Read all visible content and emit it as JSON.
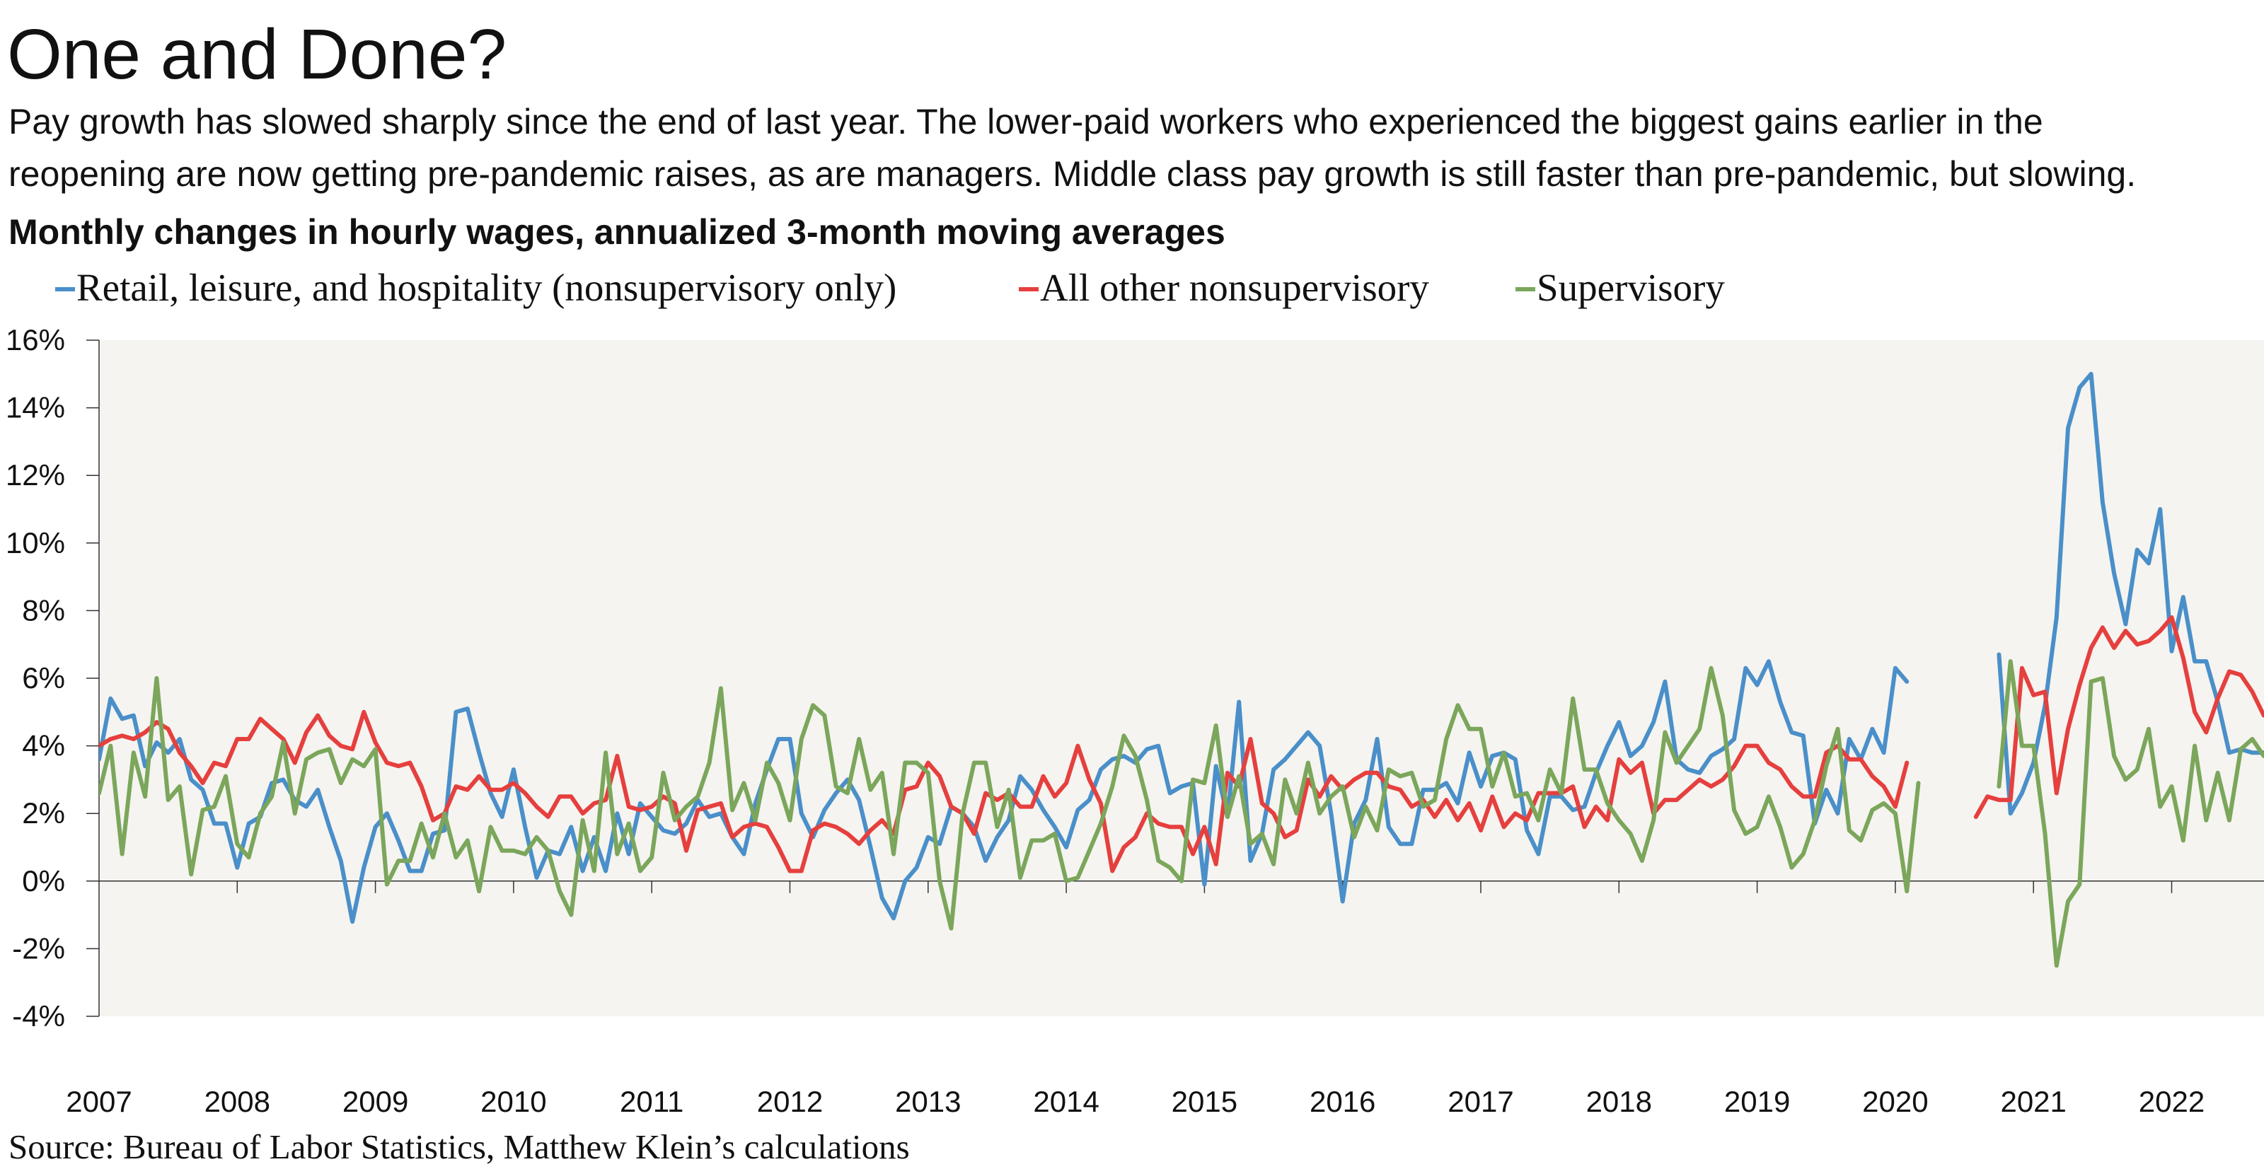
{
  "header": {
    "title": "One and Done?",
    "subtitle_line1": "Pay growth has slowed sharply since the end of last year. The lower-paid workers who experienced the biggest gains earlier in the",
    "subtitle_line2": "reopening are now getting pre-pandemic raises, as are managers. Middle class pay growth is still faster than pre-pandemic, but slowing."
  },
  "footer": {
    "source": "Source: Bureau of Labor Statistics, Matthew Klein’s calculations"
  },
  "chart_data": {
    "type": "line",
    "title": "Monthly changes in hourly wages, annualized 3-month moving averages",
    "xlabel": "",
    "ylabel": "",
    "x_start": "2007-01",
    "x_frequency": "monthly",
    "ylim": [
      -4,
      16
    ],
    "y_ticks": [
      {
        "v": 16,
        "label": "16%"
      },
      {
        "v": 14,
        "label": "14%"
      },
      {
        "v": 12,
        "label": "12%"
      },
      {
        "v": 10,
        "label": "10%"
      },
      {
        "v": 8,
        "label": "8%"
      },
      {
        "v": 6,
        "label": "6%"
      },
      {
        "v": 4,
        "label": "4%"
      },
      {
        "v": 2,
        "label": "2%"
      },
      {
        "v": 0,
        "label": "0%"
      },
      {
        "v": -2,
        "label": "-2%"
      },
      {
        "v": -4,
        "label": "-4%"
      }
    ],
    "x_ticks": [
      "2007",
      "2008",
      "2009",
      "2010",
      "2011",
      "2012",
      "2013",
      "2014",
      "2015",
      "2016",
      "2017",
      "2018",
      "2019",
      "2020",
      "2021",
      "2022"
    ],
    "legend_position": "top-left",
    "series": [
      {
        "name": "Retail, leisure, and hospitality (nonsupervisory only)",
        "color": "#4a8fc9",
        "values": [
          3.6,
          5.4,
          4.8,
          4.9,
          3.4,
          4.1,
          3.8,
          4.2,
          3.0,
          2.7,
          1.7,
          1.7,
          0.4,
          1.7,
          1.9,
          2.9,
          3.0,
          2.4,
          2.2,
          2.7,
          1.6,
          0.6,
          -1.2,
          0.4,
          1.6,
          2.0,
          1.2,
          0.3,
          0.3,
          1.4,
          1.5,
          5.0,
          5.1,
          3.8,
          2.6,
          1.9,
          3.3,
          1.6,
          0.1,
          0.9,
          0.8,
          1.6,
          0.3,
          1.3,
          0.3,
          2.0,
          0.8,
          2.3,
          1.9,
          1.5,
          1.4,
          1.7,
          2.4,
          1.9,
          2.0,
          1.3,
          0.8,
          2.3,
          3.3,
          4.2,
          4.2,
          2.0,
          1.3,
          2.1,
          2.6,
          3.0,
          2.4,
          1.0,
          -0.5,
          -1.1,
          0.0,
          0.4,
          1.3,
          1.1,
          2.2,
          2.0,
          1.6,
          0.6,
          1.3,
          1.8,
          3.1,
          2.7,
          2.1,
          1.6,
          1.0,
          2.1,
          2.4,
          3.3,
          3.6,
          3.7,
          3.5,
          3.9,
          4.0,
          2.6,
          2.8,
          2.9,
          -0.1,
          3.4,
          1.9,
          5.3,
          0.6,
          1.4,
          3.3,
          3.6,
          4.0,
          4.4,
          4.0,
          2.0,
          -0.6,
          1.7,
          2.4,
          4.2,
          1.6,
          1.1,
          1.1,
          2.7,
          2.7,
          2.9,
          2.3,
          3.8,
          2.8,
          3.7,
          3.8,
          3.6,
          1.5,
          0.8,
          2.5,
          2.5,
          2.1,
          2.2,
          3.2,
          4.0,
          4.7,
          3.7,
          4.0,
          4.7,
          5.9,
          3.6,
          3.3,
          3.2,
          3.7,
          3.9,
          4.2,
          6.3,
          5.8,
          6.5,
          5.3,
          4.4,
          4.3,
          1.7,
          2.7,
          2.0,
          4.2,
          3.6,
          4.5,
          3.8,
          6.3,
          5.9,
          null,
          null,
          null,
          null,
          null,
          null,
          null,
          6.7,
          2.0,
          2.6,
          3.5,
          5.2,
          7.8,
          13.4,
          14.6,
          15.0,
          11.2,
          9.1,
          7.6,
          9.8,
          9.4,
          11.0,
          6.8,
          8.4,
          6.5,
          6.5,
          5.3,
          3.8,
          3.9,
          3.8,
          3.8
        ]
      },
      {
        "name": "All other nonsupervisory",
        "color": "#e5403e",
        "values": [
          4.0,
          4.2,
          4.3,
          4.2,
          4.4,
          4.7,
          4.5,
          3.8,
          3.4,
          2.9,
          3.5,
          3.4,
          4.2,
          4.2,
          4.8,
          4.5,
          4.2,
          3.5,
          4.4,
          4.9,
          4.3,
          4.0,
          3.9,
          5.0,
          4.1,
          3.5,
          3.4,
          3.5,
          2.8,
          1.8,
          2.0,
          2.8,
          2.7,
          3.1,
          2.7,
          2.7,
          2.9,
          2.6,
          2.2,
          1.9,
          2.5,
          2.5,
          2.0,
          2.3,
          2.4,
          3.7,
          2.2,
          2.1,
          2.2,
          2.5,
          2.3,
          0.9,
          2.1,
          2.2,
          2.3,
          1.3,
          1.6,
          1.7,
          1.6,
          1.0,
          0.3,
          0.3,
          1.5,
          1.7,
          1.6,
          1.4,
          1.1,
          1.5,
          1.8,
          1.4,
          2.7,
          2.8,
          3.5,
          3.1,
          2.2,
          2.0,
          1.4,
          2.6,
          2.4,
          2.6,
          2.2,
          2.2,
          3.1,
          2.5,
          2.9,
          4.0,
          3.0,
          2.3,
          0.3,
          1.0,
          1.3,
          2.0,
          1.7,
          1.6,
          1.6,
          0.8,
          1.6,
          0.5,
          3.2,
          2.8,
          4.2,
          2.3,
          2.0,
          1.3,
          1.5,
          3.0,
          2.5,
          3.1,
          2.7,
          3.0,
          3.2,
          3.2,
          2.8,
          2.7,
          2.2,
          2.4,
          1.9,
          2.4,
          1.8,
          2.3,
          1.5,
          2.5,
          1.6,
          2.0,
          1.8,
          2.6,
          2.6,
          2.6,
          2.8,
          1.6,
          2.2,
          1.8,
          3.6,
          3.2,
          3.5,
          2.0,
          2.4,
          2.4,
          2.7,
          3.0,
          2.8,
          3.0,
          3.4,
          4.0,
          4.0,
          3.5,
          3.3,
          2.8,
          2.5,
          2.5,
          3.8,
          4.0,
          3.6,
          3.6,
          3.1,
          2.8,
          2.2,
          3.5,
          null,
          null,
          null,
          null,
          null,
          1.9,
          2.5,
          2.4,
          2.4,
          6.3,
          5.5,
          5.6,
          2.6,
          4.5,
          5.8,
          6.9,
          7.5,
          6.9,
          7.4,
          7.0,
          7.1,
          7.4,
          7.8,
          6.6,
          5.0,
          4.4,
          5.4,
          6.2,
          6.1,
          5.6,
          4.9
        ]
      },
      {
        "name": "Supervisory",
        "color": "#7ba65b",
        "values": [
          2.6,
          4.0,
          0.8,
          3.8,
          2.5,
          6.0,
          2.4,
          2.8,
          0.2,
          2.1,
          2.2,
          3.1,
          1.1,
          0.7,
          2.0,
          2.5,
          4.1,
          2.0,
          3.6,
          3.8,
          3.9,
          2.9,
          3.6,
          3.4,
          3.9,
          -0.1,
          0.6,
          0.6,
          1.7,
          0.7,
          2.0,
          0.7,
          1.2,
          -0.3,
          1.6,
          0.9,
          0.9,
          0.8,
          1.3,
          0.9,
          -0.3,
          -1.0,
          1.8,
          0.3,
          3.8,
          0.8,
          1.7,
          0.3,
          0.7,
          3.2,
          1.8,
          2.2,
          2.5,
          3.5,
          5.7,
          2.1,
          2.9,
          1.8,
          3.5,
          2.9,
          1.8,
          4.2,
          5.2,
          4.9,
          2.8,
          2.6,
          4.2,
          2.7,
          3.2,
          0.8,
          3.5,
          3.5,
          3.2,
          0.0,
          -1.4,
          2.0,
          3.5,
          3.5,
          1.6,
          2.7,
          0.1,
          1.2,
          1.2,
          1.4,
          0.0,
          0.1,
          0.9,
          1.7,
          2.8,
          4.3,
          3.7,
          2.4,
          0.6,
          0.4,
          0.0,
          3.0,
          2.9,
          4.6,
          1.9,
          3.1,
          1.1,
          1.4,
          0.5,
          3.0,
          2.0,
          3.5,
          2.0,
          2.5,
          2.8,
          1.3,
          2.2,
          1.5,
          3.3,
          3.1,
          3.2,
          2.2,
          2.4,
          4.2,
          5.2,
          4.5,
          4.5,
          2.8,
          3.8,
          2.5,
          2.6,
          1.8,
          3.3,
          2.6,
          5.4,
          3.3,
          3.3,
          2.3,
          1.8,
          1.4,
          0.6,
          1.8,
          4.4,
          3.5,
          4.0,
          4.5,
          6.3,
          4.9,
          2.1,
          1.4,
          1.6,
          2.5,
          1.6,
          0.4,
          0.8,
          1.8,
          3.4,
          4.5,
          1.5,
          1.2,
          2.1,
          2.3,
          2.0,
          -0.3,
          2.9,
          null,
          null,
          null,
          null,
          null,
          null,
          2.8,
          6.5,
          4.0,
          4.0,
          1.4,
          -2.5,
          -0.6,
          -0.1,
          5.9,
          6.0,
          3.7,
          3.0,
          3.3,
          4.5,
          2.2,
          2.8,
          1.2,
          4.0,
          1.8,
          3.2,
          1.8,
          3.9,
          4.2,
          3.7
        ]
      }
    ]
  }
}
